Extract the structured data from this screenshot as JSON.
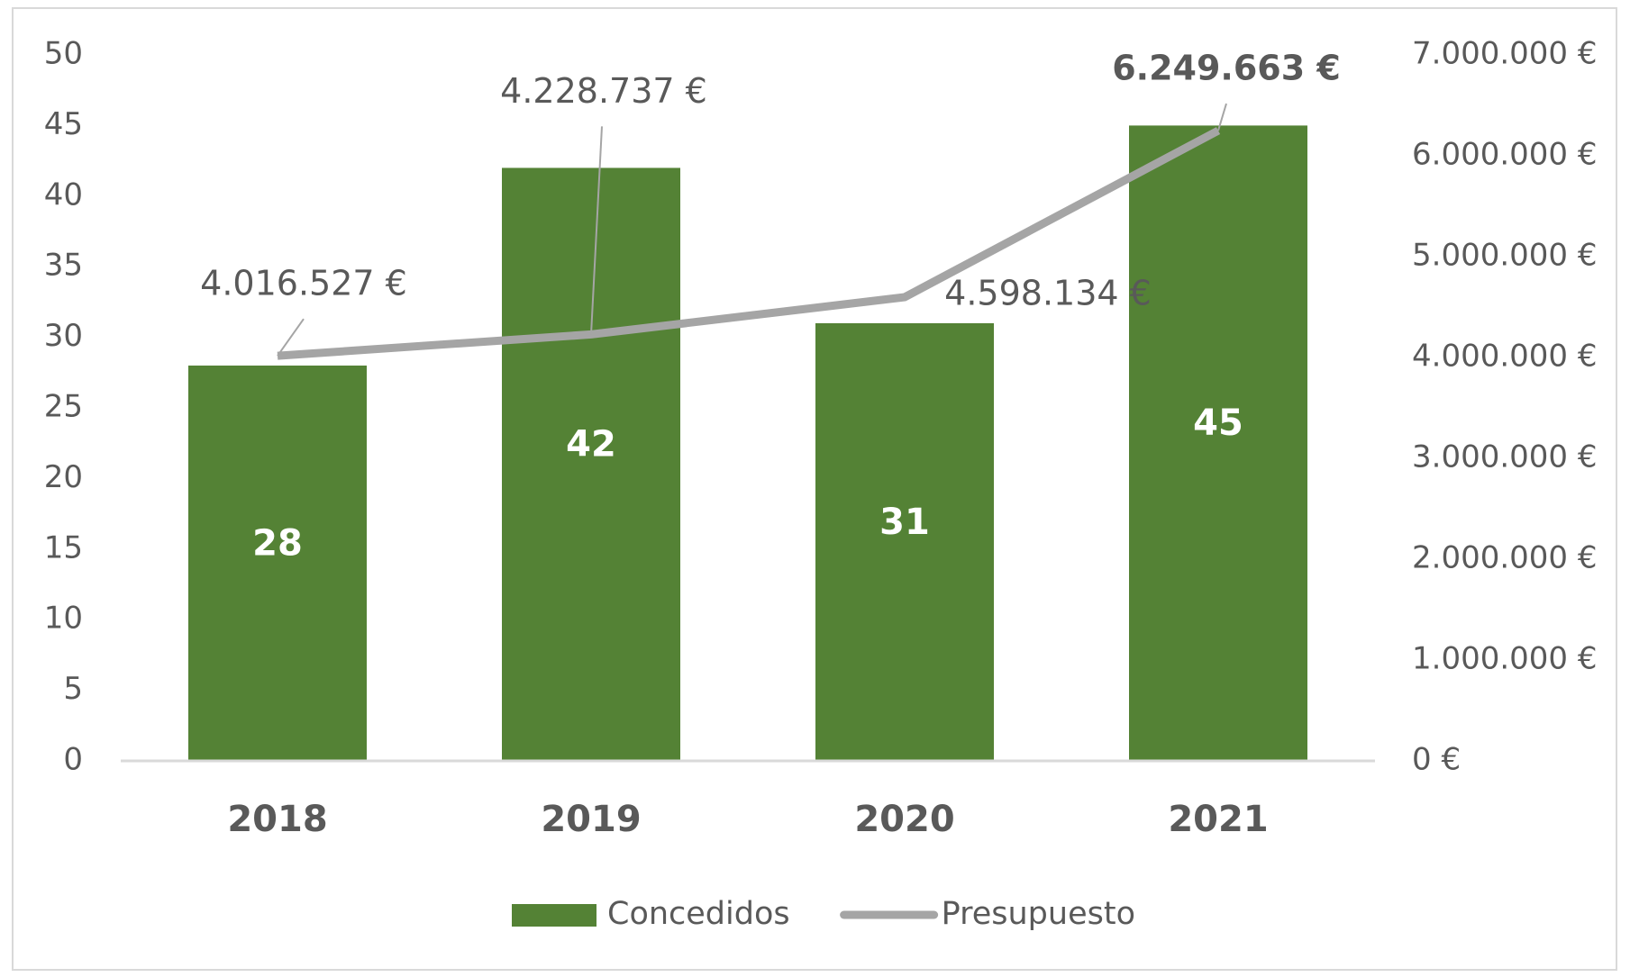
{
  "chart_data": {
    "type": "combo",
    "categories": [
      "2018",
      "2019",
      "2020",
      "2021"
    ],
    "series": [
      {
        "name": "Concedidos",
        "type": "bar",
        "color": "#548235",
        "values": [
          28,
          42,
          31,
          45
        ]
      },
      {
        "name": "Presupuesto",
        "type": "line",
        "axis": "y2",
        "color": "#a5a5a5",
        "values": [
          4016527,
          4228737,
          4598134,
          6249663
        ],
        "value_labels": [
          "4.016.527 €",
          "4.228.737 €",
          "4.598.134 €",
          "6.249.663 €"
        ]
      }
    ],
    "ylim": [
      0,
      50
    ],
    "yticks": [
      0,
      5,
      10,
      15,
      20,
      25,
      30,
      35,
      40,
      45,
      50
    ],
    "y2lim": [
      0,
      7000000
    ],
    "y2ticks": [
      {
        "value": 0,
        "label": "0 €"
      },
      {
        "value": 1000000,
        "label": "1.000.000 €"
      },
      {
        "value": 2000000,
        "label": "2.000.000 €"
      },
      {
        "value": 3000000,
        "label": "3.000.000 €"
      },
      {
        "value": 4000000,
        "label": "4.000.000 €"
      },
      {
        "value": 5000000,
        "label": "5.000.000 €"
      },
      {
        "value": 6000000,
        "label": "6.000.000 €"
      },
      {
        "value": 7000000,
        "label": "7.000.000 €"
      }
    ],
    "legend": "bottom"
  }
}
